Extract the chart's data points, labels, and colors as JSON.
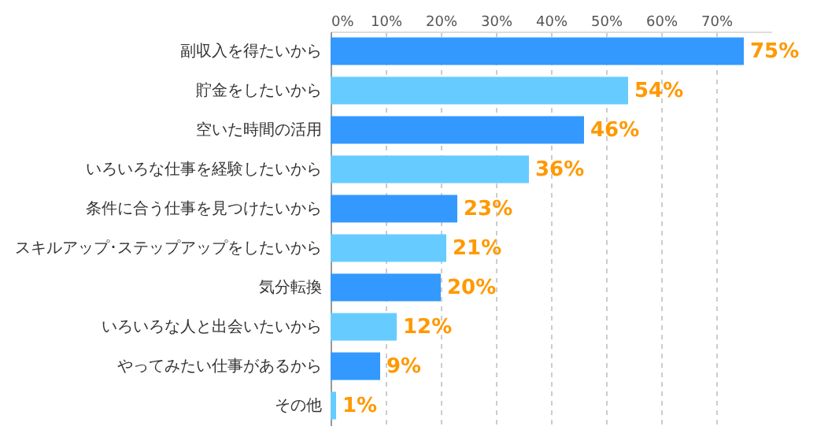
{
  "chart_data": {
    "type": "bar",
    "orientation": "horizontal",
    "categories": [
      "副収入を得たいから",
      "貯金をしたいから",
      "空いた時間の活用",
      "いろいろな仕事を経験したいから",
      "条件に合う仕事を見つけたいから",
      "スキルアップ･ステップアップをしたいから",
      "気分転換",
      "いろいろな人と出会いたいから",
      "やってみたい仕事があるから",
      "その他"
    ],
    "values": [
      75,
      54,
      46,
      36,
      23,
      21,
      20,
      12,
      9,
      1
    ],
    "colors": [
      "#3399ff",
      "#66ccff",
      "#3399ff",
      "#66ccff",
      "#3399ff",
      "#66ccff",
      "#3399ff",
      "#66ccff",
      "#3399ff",
      "#66ccff"
    ],
    "value_labels": [
      "75%",
      "54%",
      "46%",
      "36%",
      "23%",
      "21%",
      "20%",
      "12%",
      "9%",
      "1%"
    ],
    "xlim": [
      0,
      80
    ],
    "xticks": [
      {
        "value": 0,
        "label": "0%"
      },
      {
        "value": 10,
        "label": "10%"
      },
      {
        "value": 20,
        "label": "20%"
      },
      {
        "value": 30,
        "label": "30%"
      },
      {
        "value": 40,
        "label": "40%"
      },
      {
        "value": 50,
        "label": "50%"
      },
      {
        "value": 60,
        "label": "60%"
      },
      {
        "value": 70,
        "label": "70%"
      }
    ],
    "grid": "x"
  }
}
